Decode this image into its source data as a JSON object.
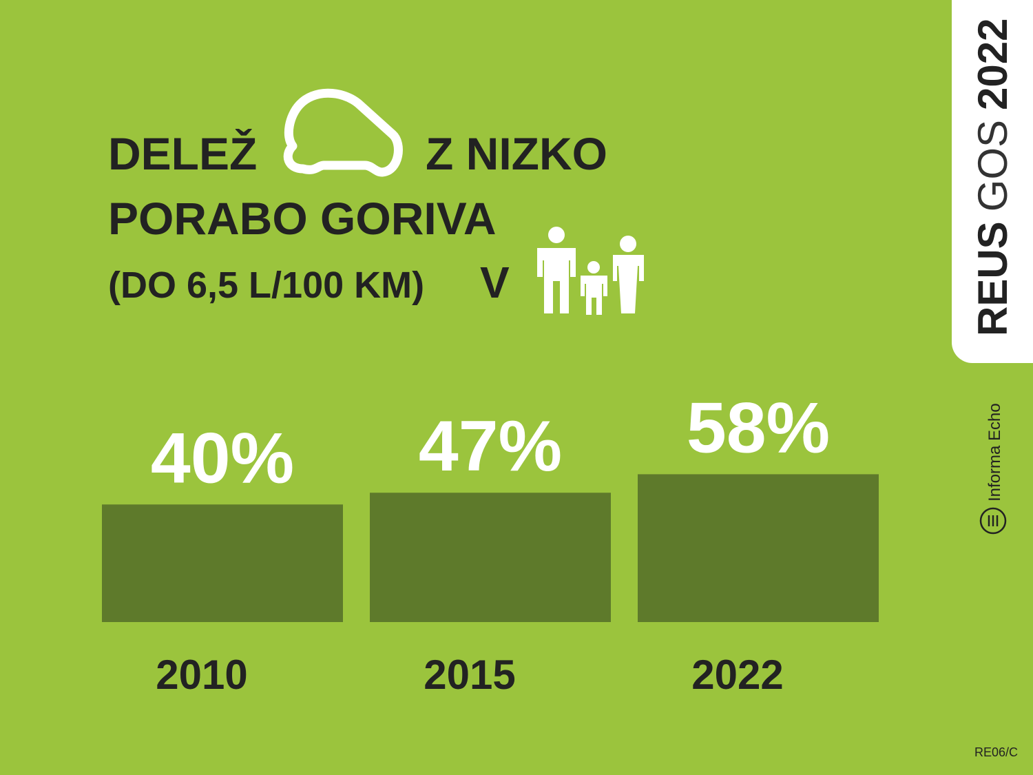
{
  "chart_data": {
    "type": "bar",
    "title": [
      "DELEŽ",
      "Z NIZKO",
      "PORABO GORIVA",
      "(DO 6,5 L/100 KM)",
      "V"
    ],
    "categories": [
      "2010",
      "2015",
      "2022"
    ],
    "values": [
      40,
      47,
      58
    ],
    "value_labels": [
      "40%",
      "47%",
      "58%"
    ],
    "color": "#5e7a2b",
    "ylim": [
      -30,
      100
    ]
  },
  "sidebar": {
    "brand": [
      "REUS",
      "GOS",
      "2022"
    ],
    "publisher": "Informa Echo"
  },
  "footer": {
    "code": "RE06/C"
  }
}
